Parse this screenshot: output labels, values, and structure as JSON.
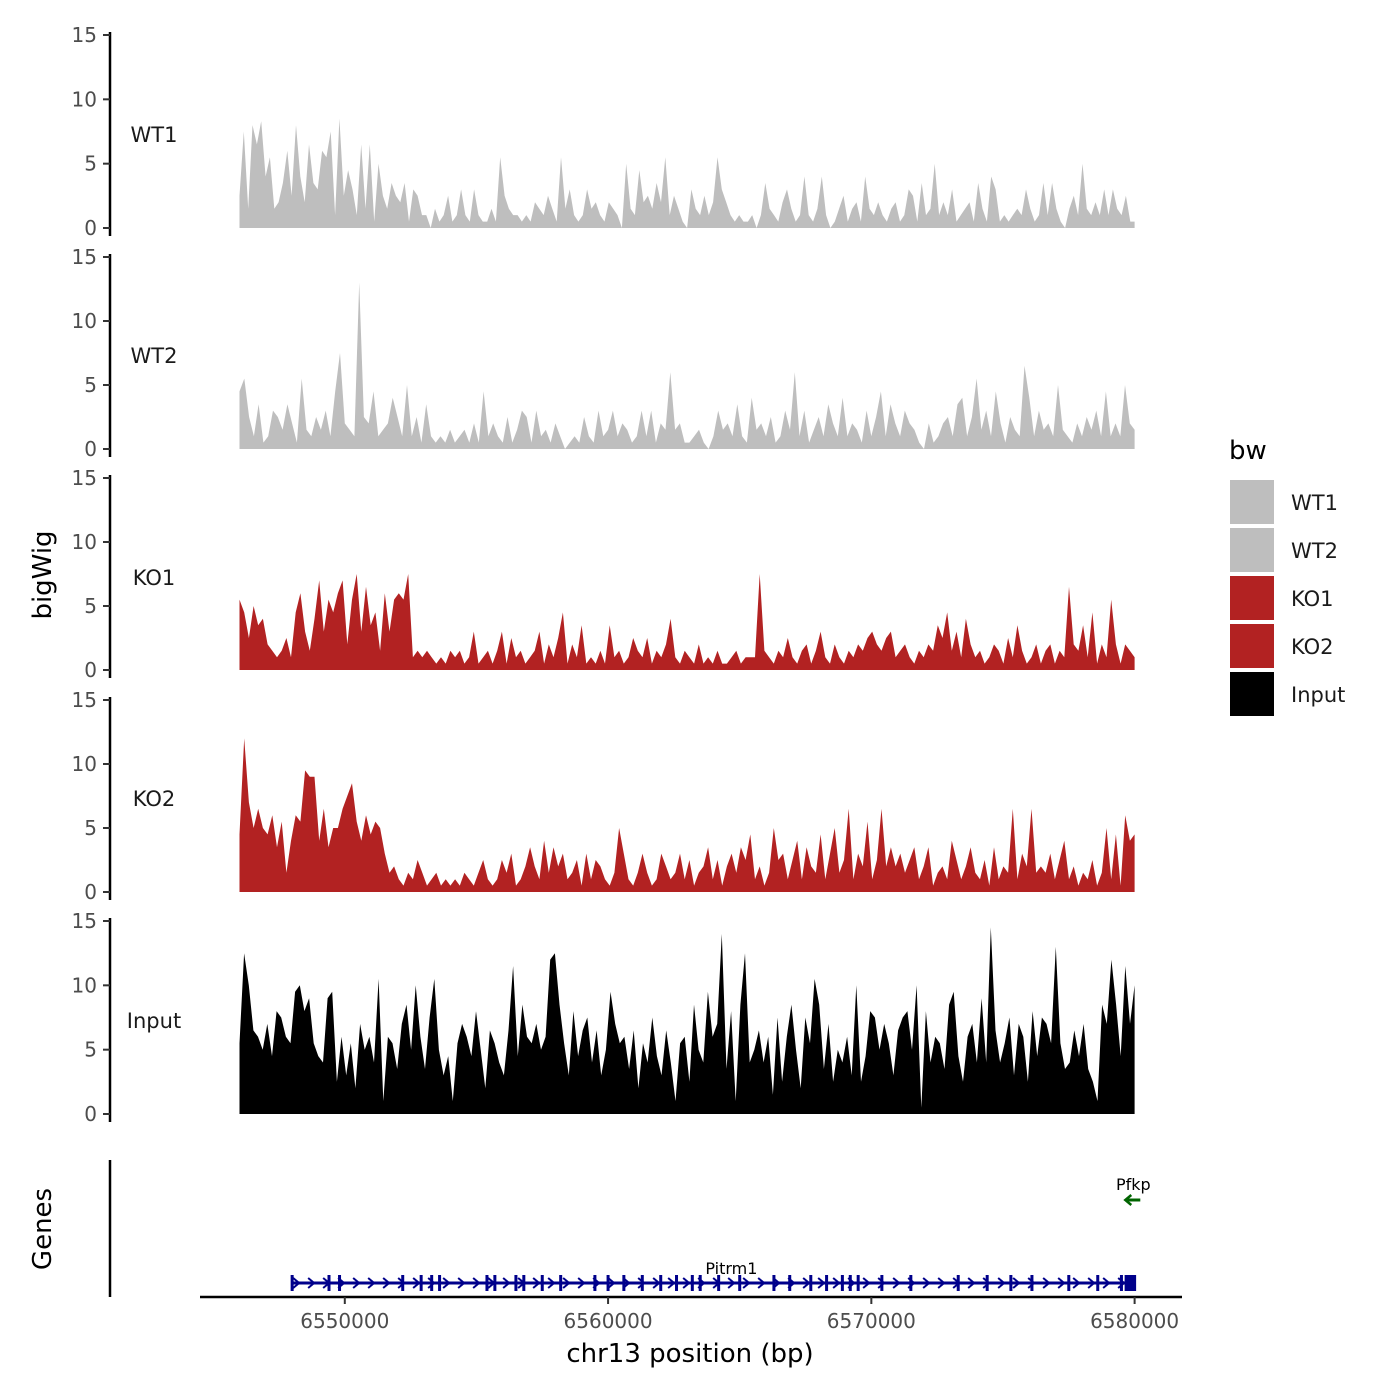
{
  "chart_data": {
    "type": "area",
    "chromosome": "chr13",
    "xlabel": "chr13 position (bp)",
    "ylabel": "bigWig",
    "genes_label": "Genes",
    "xlim": [
      6544500,
      6581800
    ],
    "ylim": [
      0,
      15
    ],
    "x_ticks": [
      6550000,
      6560000,
      6570000,
      6580000
    ],
    "x_tick_labels": [
      "6550000",
      "6560000",
      "6570000",
      "6580000"
    ],
    "y_ticks": [
      0,
      5,
      10,
      15
    ],
    "y_tick_labels": [
      "0",
      "5",
      "10",
      "15"
    ],
    "track_range": [
      6546000,
      6580000
    ],
    "legend": {
      "title": "bw",
      "entries": [
        {
          "label": "WT1",
          "color": "#BEBEBE"
        },
        {
          "label": "WT2",
          "color": "#BEBEBE"
        },
        {
          "label": "KO1",
          "color": "#B22222"
        },
        {
          "label": "KO2",
          "color": "#B22222"
        },
        {
          "label": "Input",
          "color": "#000000"
        }
      ]
    },
    "series": [
      {
        "name": "WT1",
        "color": "#BEBEBE",
        "values": [
          2.5,
          7.5,
          1.5,
          8.0,
          6.5,
          8.3,
          4.0,
          5.5,
          1.5,
          2.0,
          3.5,
          6.0,
          2.5,
          8.0,
          4.0,
          2.0,
          6.5,
          3.5,
          3.0,
          6.0,
          5.5,
          7.5,
          1.0,
          8.5,
          2.5,
          4.5,
          3.0,
          1.0,
          6.5,
          1.5,
          6.5,
          0.5,
          5.0,
          2.5,
          1.5,
          3.5,
          2.5,
          2.0,
          3.5,
          0.5,
          3.0,
          2.5,
          1.0,
          1.0,
          0.0,
          1.5,
          0.5,
          1.0,
          2.5,
          0.5,
          1.0,
          3.0,
          1.0,
          0.5,
          3.0,
          1.0,
          0.5,
          0.5,
          1.5,
          0.5,
          5.5,
          2.5,
          1.5,
          1.0,
          1.0,
          0.5,
          1.0,
          0.5,
          2.0,
          1.5,
          1.0,
          2.5,
          1.5,
          0.5,
          5.5,
          1.5,
          3.0,
          1.0,
          0.5,
          1.0,
          3.0,
          1.5,
          2.0,
          1.0,
          0.5,
          2.0,
          1.5,
          1.0,
          0.0,
          5.0,
          1.5,
          1.0,
          4.5,
          2.0,
          2.5,
          1.5,
          3.5,
          2.0,
          5.5,
          1.0,
          2.5,
          1.5,
          0.5,
          0.0,
          3.0,
          1.5,
          1.0,
          2.5,
          1.0,
          2.0,
          5.5,
          3.0,
          2.0,
          1.0,
          0.5,
          1.0,
          0.5,
          0.5,
          1.0,
          0.0,
          1.0,
          3.5,
          1.5,
          1.0,
          0.5,
          2.0,
          3.0,
          1.5,
          0.5,
          1.0,
          4.0,
          1.0,
          0.5,
          1.5,
          4.0,
          1.0,
          0.0,
          0.5,
          1.5,
          2.5,
          0.5,
          1.5,
          2.0,
          0.5,
          4.0,
          1.5,
          1.0,
          2.0,
          1.0,
          0.5,
          1.5,
          2.0,
          0.5,
          1.0,
          3.0,
          2.5,
          0.5,
          3.5,
          1.0,
          1.5,
          5.0,
          1.0,
          2.0,
          1.0,
          3.0,
          0.5,
          1.0,
          1.5,
          2.0,
          0.5,
          3.5,
          1.5,
          0.5,
          4.0,
          3.0,
          0.5,
          1.0,
          0.5,
          1.0,
          1.5,
          1.0,
          3.0,
          1.5,
          0.5,
          1.0,
          3.5,
          1.0,
          3.5,
          1.5,
          0.5,
          0.0,
          1.5,
          2.5,
          1.0,
          5.0,
          1.5,
          1.0,
          2.0,
          1.0,
          3.0,
          1.0,
          3.0,
          1.5,
          1.0,
          2.5,
          0.5,
          0.5
        ]
      },
      {
        "name": "WT2",
        "color": "#BEBEBE",
        "values": [
          4.5,
          5.5,
          2.5,
          1.0,
          3.5,
          0.5,
          1.0,
          3.0,
          2.5,
          1.5,
          3.5,
          2.0,
          0.5,
          5.5,
          1.5,
          1.0,
          2.5,
          1.5,
          3.0,
          1.0,
          4.5,
          7.5,
          2.0,
          1.5,
          1.0,
          13.0,
          2.5,
          2.0,
          4.5,
          1.0,
          1.5,
          2.0,
          4.0,
          2.5,
          1.0,
          5.0,
          1.0,
          2.5,
          0.5,
          3.5,
          1.0,
          0.5,
          1.0,
          0.5,
          1.5,
          0.5,
          1.0,
          1.5,
          0.5,
          2.0,
          0.5,
          4.5,
          1.0,
          2.0,
          1.0,
          0.5,
          2.5,
          0.5,
          1.5,
          3.0,
          2.5,
          0.5,
          3.0,
          1.0,
          1.5,
          0.5,
          2.0,
          1.0,
          0.0,
          0.5,
          1.0,
          0.5,
          2.5,
          1.0,
          0.5,
          3.0,
          1.0,
          1.5,
          3.0,
          1.0,
          2.0,
          1.5,
          0.5,
          1.0,
          3.0,
          1.0,
          3.0,
          0.5,
          2.0,
          1.5,
          6.0,
          1.5,
          2.0,
          0.5,
          0.5,
          1.0,
          1.5,
          0.5,
          0.0,
          1.0,
          3.0,
          1.5,
          2.0,
          1.0,
          3.5,
          1.0,
          0.5,
          4.0,
          1.5,
          2.0,
          1.0,
          2.5,
          0.5,
          1.0,
          3.0,
          1.5,
          6.0,
          1.0,
          3.0,
          0.5,
          1.5,
          2.5,
          1.0,
          3.5,
          2.0,
          1.0,
          4.0,
          1.0,
          2.0,
          1.5,
          0.5,
          3.0,
          1.0,
          2.5,
          4.5,
          1.0,
          3.5,
          2.0,
          1.0,
          3.0,
          2.0,
          1.5,
          0.5,
          0.0,
          2.0,
          0.5,
          1.0,
          2.0,
          2.5,
          1.0,
          3.5,
          4.0,
          1.0,
          2.5,
          5.5,
          1.5,
          3.0,
          1.0,
          4.5,
          2.0,
          0.5,
          2.5,
          1.5,
          1.0,
          6.5,
          4.0,
          1.0,
          3.0,
          1.5,
          2.0,
          1.0,
          5.0,
          1.5,
          1.0,
          0.5,
          2.0,
          1.0,
          2.5,
          1.5,
          3.0,
          1.0,
          4.5,
          1.0,
          2.0,
          1.0,
          5.0,
          2.0,
          1.5
        ]
      },
      {
        "name": "KO1",
        "color": "#B22222",
        "values": [
          5.5,
          4.5,
          2.5,
          5.0,
          3.5,
          4.0,
          2.0,
          1.5,
          1.0,
          1.5,
          2.5,
          1.0,
          4.5,
          6.0,
          3.0,
          1.5,
          4.0,
          7.0,
          3.0,
          5.5,
          4.5,
          6.0,
          7.0,
          2.0,
          5.5,
          7.5,
          3.0,
          6.5,
          3.5,
          4.5,
          1.5,
          6.0,
          3.0,
          5.5,
          6.0,
          5.5,
          7.5,
          1.0,
          1.5,
          1.0,
          1.5,
          1.0,
          0.5,
          1.0,
          0.5,
          1.5,
          1.0,
          1.5,
          0.5,
          1.0,
          3.0,
          0.5,
          1.0,
          1.5,
          0.5,
          1.5,
          3.0,
          0.5,
          2.5,
          1.0,
          1.5,
          0.5,
          1.0,
          1.5,
          3.0,
          0.5,
          2.0,
          1.0,
          2.5,
          4.5,
          0.5,
          2.0,
          1.0,
          3.5,
          0.5,
          1.0,
          0.5,
          1.5,
          0.5,
          3.5,
          1.0,
          1.5,
          0.5,
          1.0,
          2.5,
          1.5,
          1.0,
          2.5,
          0.5,
          1.5,
          1.0,
          2.0,
          4.0,
          1.0,
          0.5,
          1.5,
          1.0,
          0.5,
          2.0,
          0.5,
          1.0,
          0.5,
          1.5,
          0.5,
          0.5,
          1.0,
          1.5,
          0.5,
          1.0,
          1.0,
          1.0,
          7.5,
          1.5,
          1.0,
          0.5,
          1.5,
          1.0,
          2.5,
          1.0,
          0.5,
          1.5,
          2.0,
          0.5,
          1.5,
          3.0,
          1.0,
          0.5,
          2.0,
          1.0,
          0.5,
          1.5,
          1.0,
          2.0,
          1.5,
          2.5,
          3.0,
          2.0,
          1.5,
          2.5,
          3.0,
          1.0,
          1.5,
          2.0,
          1.0,
          0.5,
          1.5,
          1.0,
          2.0,
          1.5,
          3.5,
          2.5,
          4.5,
          1.5,
          3.0,
          1.0,
          4.0,
          2.0,
          1.0,
          1.5,
          0.5,
          1.0,
          2.0,
          1.5,
          0.5,
          2.5,
          1.0,
          3.5,
          1.5,
          0.5,
          1.0,
          2.0,
          0.5,
          1.5,
          2.0,
          0.5,
          1.5,
          1.0,
          6.5,
          2.0,
          1.5,
          3.5,
          1.0,
          4.5,
          0.5,
          2.0,
          1.0,
          5.5,
          2.0,
          0.5,
          2.0,
          1.5,
          1.0
        ]
      },
      {
        "name": "KO2",
        "color": "#B22222",
        "values": [
          4.5,
          12.0,
          7.0,
          5.0,
          6.5,
          5.0,
          4.5,
          6.0,
          3.5,
          5.5,
          1.5,
          4.0,
          6.0,
          5.5,
          9.5,
          9.0,
          9.0,
          4.0,
          6.5,
          3.5,
          5.0,
          5.0,
          6.5,
          7.5,
          8.5,
          5.5,
          4.0,
          6.0,
          4.5,
          5.5,
          5.0,
          3.0,
          1.5,
          2.0,
          1.0,
          0.5,
          1.5,
          1.0,
          2.5,
          1.5,
          0.5,
          1.0,
          1.5,
          0.5,
          1.0,
          0.5,
          1.0,
          0.5,
          1.5,
          1.0,
          0.5,
          1.5,
          2.5,
          1.0,
          0.5,
          1.0,
          2.5,
          1.5,
          3.0,
          0.5,
          1.0,
          2.0,
          3.5,
          2.0,
          1.0,
          4.0,
          1.5,
          3.5,
          2.0,
          3.0,
          1.0,
          1.5,
          2.5,
          0.5,
          3.0,
          1.0,
          2.5,
          2.0,
          1.0,
          0.5,
          1.5,
          5.0,
          3.0,
          1.0,
          0.5,
          1.5,
          3.0,
          1.5,
          0.5,
          1.0,
          3.0,
          2.0,
          1.0,
          1.5,
          3.0,
          1.0,
          2.5,
          0.5,
          1.5,
          2.0,
          3.5,
          1.0,
          2.5,
          0.5,
          2.0,
          3.0,
          1.5,
          3.5,
          2.5,
          4.5,
          1.0,
          2.0,
          0.5,
          1.5,
          5.0,
          2.5,
          3.0,
          1.0,
          2.5,
          4.0,
          1.0,
          3.5,
          2.0,
          1.5,
          4.5,
          1.0,
          3.0,
          5.0,
          1.5,
          2.5,
          6.5,
          1.0,
          3.0,
          2.0,
          5.5,
          1.0,
          2.5,
          6.5,
          2.0,
          3.5,
          2.0,
          3.0,
          1.5,
          2.5,
          3.5,
          1.0,
          2.0,
          3.5,
          0.5,
          1.5,
          2.0,
          1.0,
          4.0,
          2.5,
          1.0,
          2.0,
          3.5,
          1.5,
          1.0,
          2.5,
          0.5,
          3.5,
          1.0,
          2.0,
          1.5,
          6.5,
          1.0,
          3.0,
          2.0,
          6.5,
          1.5,
          2.0,
          1.5,
          3.0,
          1.0,
          2.5,
          4.0,
          1.0,
          2.0,
          0.5,
          1.5,
          1.0,
          2.5,
          0.5,
          1.5,
          5.0,
          1.0,
          4.5,
          0.5,
          6.0,
          4.0,
          4.5
        ]
      },
      {
        "name": "Input",
        "color": "#000000",
        "values": [
          5.5,
          12.5,
          10.0,
          6.5,
          6.0,
          5.0,
          7.0,
          4.5,
          8.0,
          7.5,
          6.0,
          5.5,
          9.5,
          10.0,
          8.0,
          9.0,
          5.5,
          4.5,
          4.0,
          9.0,
          9.5,
          2.5,
          6.0,
          3.0,
          5.5,
          2.0,
          7.0,
          5.0,
          6.0,
          4.0,
          10.5,
          1.0,
          6.0,
          5.5,
          3.5,
          7.0,
          8.5,
          5.0,
          10.0,
          6.0,
          3.5,
          7.5,
          10.5,
          5.0,
          3.0,
          4.5,
          1.0,
          5.5,
          7.0,
          6.0,
          4.5,
          8.0,
          5.0,
          2.0,
          6.5,
          5.5,
          4.0,
          3.0,
          6.5,
          11.5,
          4.5,
          8.5,
          6.0,
          5.5,
          7.0,
          5.0,
          6.0,
          12.0,
          12.5,
          8.5,
          5.5,
          3.0,
          8.0,
          4.5,
          6.5,
          7.5,
          4.0,
          6.5,
          3.0,
          5.0,
          9.5,
          7.0,
          5.5,
          6.0,
          3.5,
          6.5,
          2.0,
          5.5,
          4.0,
          7.5,
          4.5,
          3.0,
          6.5,
          4.0,
          1.0,
          5.5,
          6.0,
          2.5,
          8.5,
          5.0,
          4.0,
          9.5,
          6.0,
          7.0,
          14.0,
          3.5,
          8.0,
          1.0,
          8.5,
          12.5,
          4.0,
          5.0,
          6.5,
          4.0,
          6.0,
          1.5,
          7.5,
          2.5,
          6.0,
          8.5,
          5.0,
          2.0,
          7.5,
          5.5,
          10.5,
          8.5,
          3.5,
          7.0,
          2.5,
          5.0,
          4.0,
          6.0,
          3.0,
          10.0,
          2.5,
          4.5,
          8.0,
          7.5,
          5.0,
          7.0,
          5.5,
          3.0,
          6.5,
          7.5,
          8.0,
          5.0,
          10.0,
          0.5,
          8.0,
          4.0,
          6.0,
          5.5,
          3.5,
          8.5,
          9.5,
          4.5,
          2.5,
          6.0,
          7.0,
          4.0,
          9.0,
          4.0,
          14.5,
          6.5,
          4.0,
          5.5,
          7.5,
          3.0,
          7.0,
          6.0,
          2.5,
          8.0,
          4.5,
          7.5,
          7.0,
          5.5,
          13.0,
          5.5,
          3.5,
          4.0,
          6.5,
          4.5,
          7.0,
          3.5,
          2.5,
          1.0,
          8.5,
          7.0,
          12.0,
          8.5,
          4.5,
          11.5,
          7.0,
          10.0
        ]
      }
    ],
    "genes": [
      {
        "name": "Pitrm1",
        "strand": "+",
        "start": 6548000,
        "end": 6580000,
        "color": "#00008B",
        "exons": [
          6548000,
          6549400,
          6549800,
          6552200,
          6552900,
          6553300,
          6553600,
          6555400,
          6555700,
          6556500,
          6556800,
          6557500,
          6558200,
          6559500,
          6560000,
          6560600,
          6561300,
          6562000,
          6562600,
          6563200,
          6563500,
          6564200,
          6565000,
          6566300,
          6566900,
          6567700,
          6568300,
          6568900,
          6569200,
          6569500,
          6570400,
          6571500,
          6573300,
          6574400,
          6575300,
          6576100,
          6577500,
          6578600,
          6579500,
          6580000
        ]
      },
      {
        "name": "Pfkp",
        "strand": "-",
        "start": 6579800,
        "end": 6580100,
        "color": "#006400",
        "exons": []
      }
    ]
  }
}
